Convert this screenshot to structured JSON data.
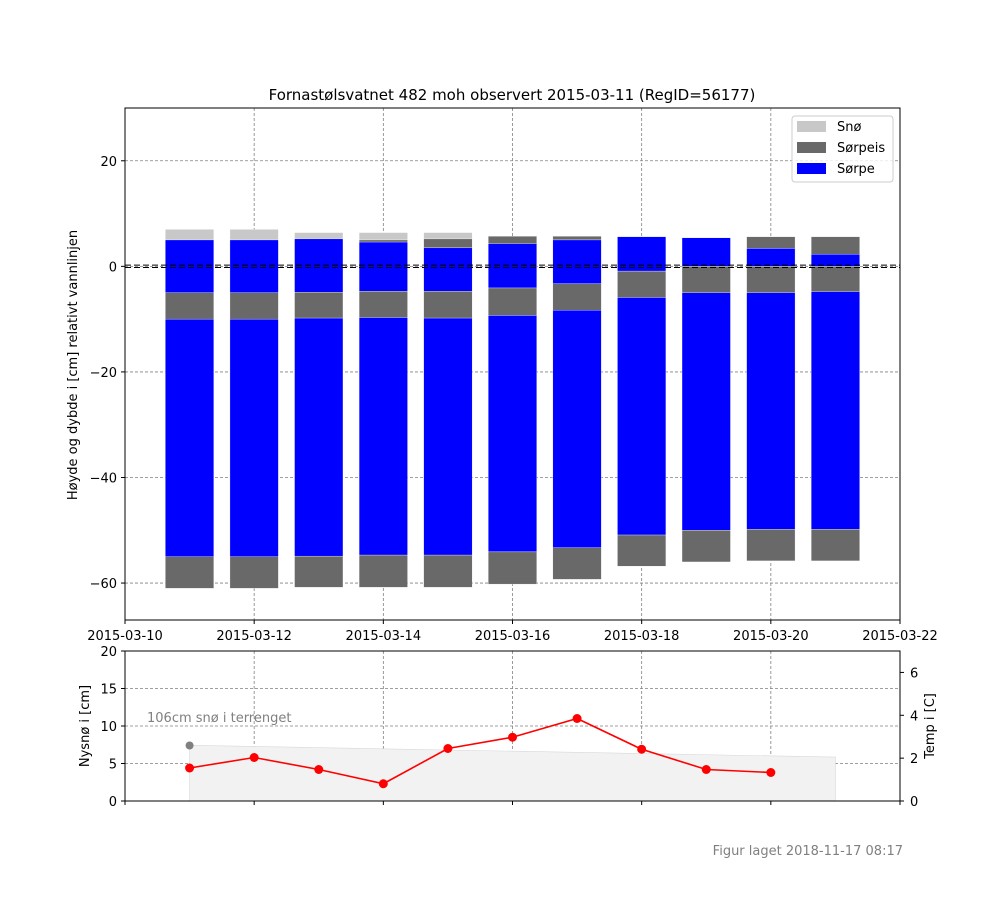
{
  "footer": "Figur laget 2018-11-17 08:17",
  "colors": {
    "sno": "#c8c8c8",
    "sorpeis": "#696969",
    "sorpe": "#0000ff",
    "temp": "#ff0000",
    "bg_fill": "#f2f2f2",
    "grey_text": "#808080"
  },
  "chart_data": [
    {
      "type": "bar",
      "subtype": "floating-stacked",
      "title": "Fornastølsvatnet 482 moh observert 2015-03-11 (RegID=56177)",
      "xlabel": "",
      "ylabel": "Høyde og dybde i [cm] relativt vannlinjen",
      "x_range": [
        "2015-03-10",
        "2015-03-22"
      ],
      "ylim": [
        -67,
        30
      ],
      "x_ticks": [
        "2015-03-10",
        "2015-03-12",
        "2015-03-14",
        "2015-03-16",
        "2015-03-18",
        "2015-03-20",
        "2015-03-22"
      ],
      "y_ticks": [
        20,
        0,
        -20,
        -40,
        -60
      ],
      "grid": true,
      "reference_line": 0,
      "legend": {
        "position": "top-right",
        "entries": [
          "Snø",
          "Sørpeis",
          "Sørpe"
        ]
      },
      "layers": [
        "Snø",
        "Sørpeis",
        "Sørpe"
      ],
      "bars": [
        {
          "date": "2015-03-11",
          "segments": [
            {
              "layer": "Snø",
              "from": 5,
              "to": 7
            },
            {
              "layer": "Sørpe",
              "from": -5,
              "to": 5
            },
            {
              "layer": "Sørpeis",
              "from": -10,
              "to": -5
            },
            {
              "layer": "Sørpe",
              "from": -55,
              "to": -10
            },
            {
              "layer": "Sørpeis",
              "from": -61,
              "to": -55
            }
          ]
        },
        {
          "date": "2015-03-12",
          "segments": [
            {
              "layer": "Snø",
              "from": 5,
              "to": 7
            },
            {
              "layer": "Sørpe",
              "from": -5,
              "to": 5
            },
            {
              "layer": "Sørpeis",
              "from": -10,
              "to": -5
            },
            {
              "layer": "Sørpe",
              "from": -55,
              "to": -10
            },
            {
              "layer": "Sørpeis",
              "from": -61,
              "to": -55
            }
          ]
        },
        {
          "date": "2015-03-13",
          "segments": [
            {
              "layer": "Snø",
              "from": 5.2,
              "to": 6.4
            },
            {
              "layer": "Sørpe",
              "from": -4.9,
              "to": 5.2
            },
            {
              "layer": "Sørpeis",
              "from": -9.8,
              "to": -4.9
            },
            {
              "layer": "Sørpe",
              "from": -54.9,
              "to": -9.8
            },
            {
              "layer": "Sørpeis",
              "from": -60.8,
              "to": -54.9
            }
          ]
        },
        {
          "date": "2015-03-14",
          "segments": [
            {
              "layer": "Snø",
              "from": 5,
              "to": 6.4
            },
            {
              "layer": "Sørpeis",
              "from": 4.6,
              "to": 5
            },
            {
              "layer": "Sørpe",
              "from": -4.7,
              "to": 4.6
            },
            {
              "layer": "Sørpeis",
              "from": -9.7,
              "to": -4.7
            },
            {
              "layer": "Sørpe",
              "from": -54.7,
              "to": -9.7
            },
            {
              "layer": "Sørpeis",
              "from": -60.8,
              "to": -54.7
            }
          ]
        },
        {
          "date": "2015-03-15",
          "segments": [
            {
              "layer": "Snø",
              "from": 5.2,
              "to": 6.4
            },
            {
              "layer": "Sørpeis",
              "from": 3.5,
              "to": 5.2
            },
            {
              "layer": "Sørpe",
              "from": -4.7,
              "to": 3.5
            },
            {
              "layer": "Sørpeis",
              "from": -9.8,
              "to": -4.7
            },
            {
              "layer": "Sørpe",
              "from": -54.7,
              "to": -9.8
            },
            {
              "layer": "Sørpeis",
              "from": -60.8,
              "to": -54.7
            }
          ]
        },
        {
          "date": "2015-03-16",
          "segments": [
            {
              "layer": "Sørpeis",
              "from": 4.3,
              "to": 5.7
            },
            {
              "layer": "Sørpe",
              "from": -4.1,
              "to": 4.3
            },
            {
              "layer": "Sørpeis",
              "from": -9.3,
              "to": -4.1
            },
            {
              "layer": "Sørpe",
              "from": -54.1,
              "to": -9.3
            },
            {
              "layer": "Sørpeis",
              "from": -60.2,
              "to": -54.1
            }
          ]
        },
        {
          "date": "2015-03-17",
          "segments": [
            {
              "layer": "Sørpeis",
              "from": 5,
              "to": 5.7
            },
            {
              "layer": "Sørpe",
              "from": -3.3,
              "to": 5
            },
            {
              "layer": "Sørpeis",
              "from": -8.3,
              "to": -3.3
            },
            {
              "layer": "Sørpe",
              "from": -53.3,
              "to": -8.3
            },
            {
              "layer": "Sørpeis",
              "from": -59.3,
              "to": -53.3
            }
          ]
        },
        {
          "date": "2015-03-18",
          "segments": [
            {
              "layer": "Sørpe",
              "from": -0.9,
              "to": 5.6
            },
            {
              "layer": "Sørpeis",
              "from": -5.9,
              "to": -0.9
            },
            {
              "layer": "Sørpe",
              "from": -50.9,
              "to": -5.9
            },
            {
              "layer": "Sørpeis",
              "from": -56.8,
              "to": -50.9
            }
          ]
        },
        {
          "date": "2015-03-19",
          "segments": [
            {
              "layer": "Sørpe",
              "from": 0,
              "to": 5.4
            },
            {
              "layer": "Sørpeis",
              "from": -5,
              "to": 0
            },
            {
              "layer": "Sørpe",
              "from": -50,
              "to": -5
            },
            {
              "layer": "Sørpeis",
              "from": -56,
              "to": -50
            }
          ]
        },
        {
          "date": "2015-03-20",
          "segments": [
            {
              "layer": "Sørpeis",
              "from": 3.4,
              "to": 5.6
            },
            {
              "layer": "Sørpe",
              "from": 0,
              "to": 3.4
            },
            {
              "layer": "Sørpeis",
              "from": -5,
              "to": 0
            },
            {
              "layer": "Sørpe",
              "from": -49.8,
              "to": -5
            },
            {
              "layer": "Sørpeis",
              "from": -55.8,
              "to": -49.8
            }
          ]
        },
        {
          "date": "2015-03-21",
          "segments": [
            {
              "layer": "Sørpeis",
              "from": 2.3,
              "to": 5.6
            },
            {
              "layer": "Sørpe",
              "from": 0,
              "to": 2.3
            },
            {
              "layer": "Sørpeis",
              "from": -4.8,
              "to": 0
            },
            {
              "layer": "Sørpe",
              "from": -49.8,
              "to": -4.8
            },
            {
              "layer": "Sørpeis",
              "from": -55.8,
              "to": -49.8
            }
          ]
        }
      ]
    },
    {
      "type": "line",
      "xlabel": "",
      "ylabel_left": "Nysnø i [cm]",
      "ylabel_right": "Temp i [C]",
      "x_range": [
        "2015-03-10",
        "2015-03-22"
      ],
      "ylim_left": [
        0,
        20
      ],
      "ylim_right": [
        0,
        7
      ],
      "y_ticks_left": [
        0,
        5,
        10,
        15,
        20
      ],
      "y_ticks_right": [
        0,
        2,
        4,
        6
      ],
      "grid": true,
      "annotation": "106cm snø i terrenget",
      "terrain_snow": {
        "axis": "right",
        "x": [
          "2015-03-11",
          "2015-03-21"
        ],
        "y": [
          2.6,
          2.05
        ]
      },
      "terrain_marker": {
        "axis": "left",
        "x": "2015-03-11",
        "y": 7.4
      },
      "series": [
        {
          "axis": "left",
          "x": [
            "2015-03-11",
            "2015-03-12",
            "2015-03-13",
            "2015-03-14",
            "2015-03-15",
            "2015-03-16",
            "2015-03-17",
            "2015-03-18",
            "2015-03-19",
            "2015-03-20",
            "2015-03-21"
          ],
          "y": [
            4.4,
            5.8,
            4.2,
            2.3,
            7.0,
            8.5,
            11.0,
            6.9,
            4.2,
            3.8,
            null
          ]
        }
      ]
    }
  ]
}
